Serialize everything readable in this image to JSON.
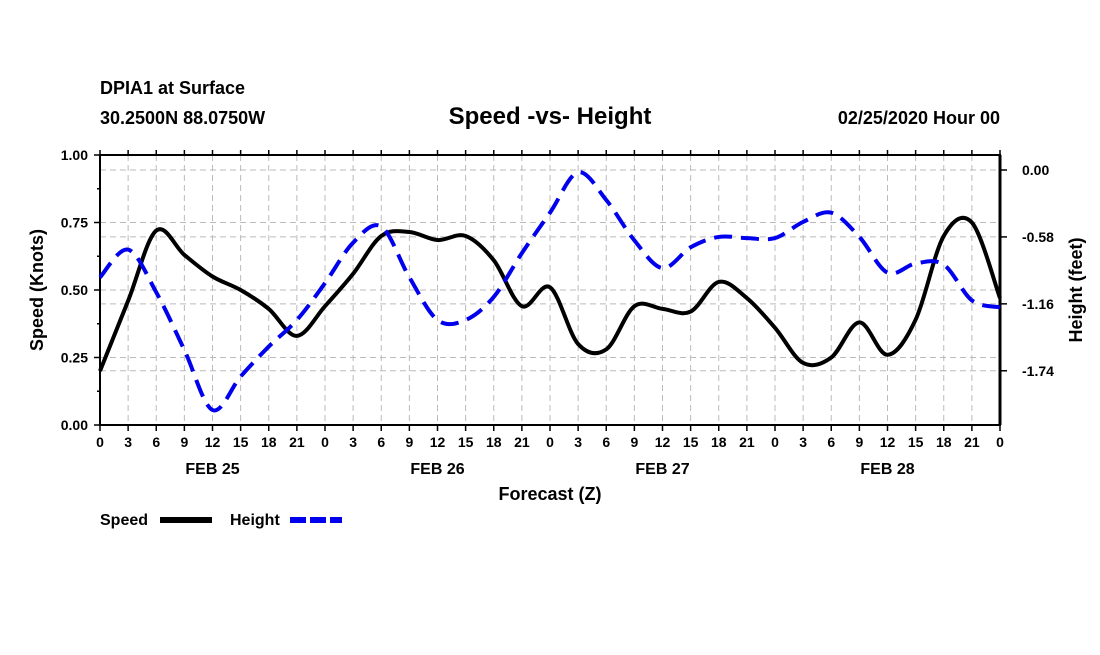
{
  "chart_data": {
    "type": "line",
    "title": "Speed -vs- Height",
    "station": "DPIA1 at Surface",
    "location": "30.2500N 88.0750W",
    "run": "02/25/2020 Hour 00",
    "xlabel": "Forecast (Z)",
    "ylabel": "Speed (Knots)",
    "y2label": "Height (feet)",
    "ylim": [
      0,
      1.0
    ],
    "y2lim": [
      -2.21,
      0.13
    ],
    "grid": true,
    "legend_placement": "bottom-left",
    "x_hours": [
      0,
      3,
      6,
      9,
      12,
      15,
      18,
      21,
      24,
      27,
      30,
      33,
      36,
      39,
      42,
      45,
      48,
      51,
      54,
      57,
      60,
      63,
      66,
      69,
      72,
      75,
      78,
      81,
      84,
      87,
      90,
      93,
      96
    ],
    "x_tick_labels": [
      "0",
      "3",
      "6",
      "9",
      "12",
      "15",
      "18",
      "21",
      "0",
      "3",
      "6",
      "9",
      "12",
      "15",
      "18",
      "21",
      "0",
      "3",
      "6",
      "9",
      "12",
      "15",
      "18",
      "21",
      "0",
      "3",
      "6",
      "9",
      "12",
      "15",
      "18",
      "21",
      "0"
    ],
    "date_labels": [
      {
        "hour": 12,
        "label": "FEB 25"
      },
      {
        "hour": 36,
        "label": "FEB 26"
      },
      {
        "hour": 60,
        "label": "FEB 27"
      },
      {
        "hour": 84,
        "label": "FEB 28"
      }
    ],
    "y_ticks": [
      "0.00",
      "0.25",
      "0.50",
      "0.75",
      "1.00"
    ],
    "y_tick_values": [
      0,
      0.25,
      0.5,
      0.75,
      1.0
    ],
    "y2_ticks": [
      "0.00",
      "-0.58",
      "-1.16",
      "-1.74"
    ],
    "y2_tick_values": [
      0,
      -0.58,
      -1.16,
      -1.74
    ],
    "series": [
      {
        "name": "Speed",
        "axis": "left",
        "color": "#000000",
        "style": "solid",
        "values": [
          0.2,
          0.46,
          0.72,
          0.63,
          0.55,
          0.5,
          0.43,
          0.33,
          0.44,
          0.56,
          0.7,
          0.715,
          0.685,
          0.7,
          0.61,
          0.44,
          0.51,
          0.3,
          0.28,
          0.44,
          0.43,
          0.42,
          0.53,
          0.47,
          0.36,
          0.23,
          0.25,
          0.38,
          0.26,
          0.39,
          0.7,
          0.75,
          0.47
        ]
      },
      {
        "name": "Height",
        "axis": "right",
        "color": "#0000ee",
        "style": "dashed",
        "values": [
          -0.93,
          -0.69,
          -1.06,
          -1.56,
          -2.08,
          -1.79,
          -1.53,
          -1.3,
          -0.98,
          -0.63,
          -0.49,
          -0.93,
          -1.3,
          -1.3,
          -1.1,
          -0.72,
          -0.37,
          -0.02,
          -0.26,
          -0.61,
          -0.85,
          -0.67,
          -0.58,
          -0.59,
          -0.59,
          -0.45,
          -0.37,
          -0.58,
          -0.89,
          -0.81,
          -0.82,
          -1.13,
          -1.19
        ]
      }
    ]
  }
}
